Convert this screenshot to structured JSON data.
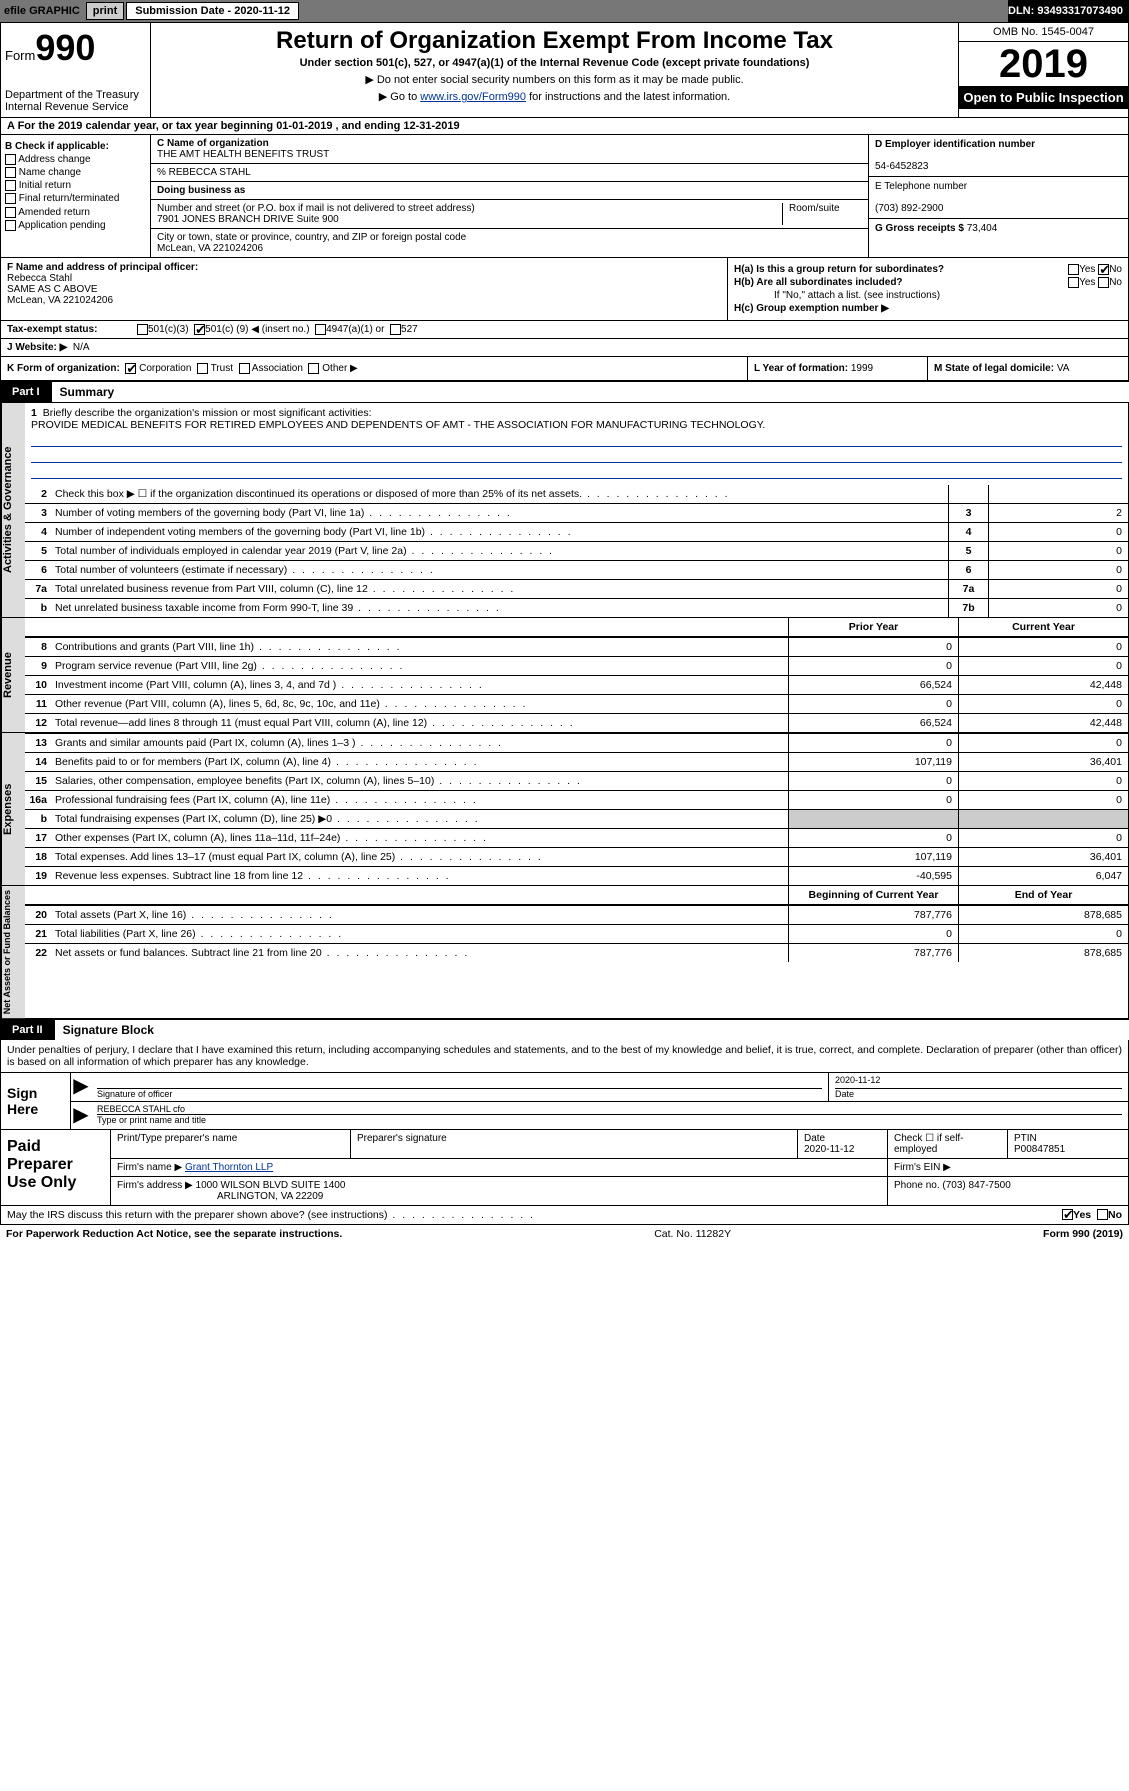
{
  "topbar": {
    "efile": "efile GRAPHIC",
    "print": "print",
    "sub_label": "Submission Date - ",
    "sub_date": "2020-11-12",
    "dln": "DLN: 93493317073490"
  },
  "header": {
    "form_label": "Form",
    "form_num": "990",
    "dept": "Department of the Treasury\nInternal Revenue Service",
    "title": "Return of Organization Exempt From Income Tax",
    "sub": "Under section 501(c), 527, or 4947(a)(1) of the Internal Revenue Code (except private foundations)",
    "arrow1": "▶ Do not enter social security numbers on this form as it may be made public.",
    "arrow2_pre": "▶ Go to ",
    "arrow2_link": "www.irs.gov/Form990",
    "arrow2_post": " for instructions and the latest information.",
    "omb": "OMB No. 1545-0047",
    "year": "2019",
    "open_pub": "Open to Public Inspection"
  },
  "lineA": "A For the 2019 calendar year, or tax year beginning 01-01-2019    , and ending 12-31-2019",
  "colB": {
    "header": "B Check if applicable:",
    "items": [
      "Address change",
      "Name change",
      "Initial return",
      "Final return/terminated",
      "Amended return",
      "Application pending"
    ]
  },
  "colC": {
    "name_lbl": "C Name of organization",
    "name": "THE AMT HEALTH BENEFITS TRUST",
    "care_of": "% REBECCA STAHL",
    "dba_lbl": "Doing business as",
    "addr_lbl": "Number and street (or P.O. box if mail is not delivered to street address)",
    "room_lbl": "Room/suite",
    "addr": "7901 JONES BRANCH DRIVE Suite 900",
    "city_lbl": "City or town, state or province, country, and ZIP or foreign postal code",
    "city": "McLean, VA  221024206"
  },
  "colD": {
    "ein_lbl": "D Employer identification number",
    "ein": "54-6452823",
    "phone_lbl": "E Telephone number",
    "phone": "(703) 892-2900",
    "gross_lbl": "G Gross receipts $",
    "gross": "73,404"
  },
  "rowF": {
    "lbl": "F Name and address of principal officer:",
    "name": "Rebecca Stahl",
    "line2": "SAME AS C ABOVE",
    "line3": "McLean, VA  221024206"
  },
  "rowH": {
    "a": "H(a)  Is this a group return for subordinates?",
    "a_yes": "Yes",
    "a_no": "No",
    "b": "H(b)  Are all subordinates included?",
    "b_yes": "Yes",
    "b_no": "No",
    "b_note": "If \"No,\" attach a list. (see instructions)",
    "c": "H(c)  Group exemption number ▶"
  },
  "rowI": {
    "lbl": "Tax-exempt status:",
    "o1": "501(c)(3)",
    "o2_pre": "501(c) (",
    "o2_val": "9",
    "o2_post": ") ◀ (insert no.)",
    "o3": "4947(a)(1) or",
    "o4": "527"
  },
  "rowJ": {
    "lbl": "J   Website: ▶",
    "val": "N/A"
  },
  "rowK": {
    "lbl": "K Form of organization:",
    "o1": "Corporation",
    "o2": "Trust",
    "o3": "Association",
    "o4": "Other ▶"
  },
  "rowL": {
    "lbl": "L Year of formation:",
    "val": "1999"
  },
  "rowM": {
    "lbl": "M State of legal domicile:",
    "val": "VA"
  },
  "part1": {
    "tag": "Part I",
    "title": "Summary"
  },
  "vtabs": {
    "gov": "Activities & Governance",
    "rev": "Revenue",
    "exp": "Expenses",
    "net": "Net Assets or Fund Balances"
  },
  "mission": {
    "ln": "1",
    "lbl": "Briefly describe the organization's mission or most significant activities:",
    "text": "PROVIDE MEDICAL BENEFITS FOR RETIRED EMPLOYEES AND DEPENDENTS OF AMT - THE ASSOCIATION FOR MANUFACTURING TECHNOLOGY."
  },
  "lines_gov": [
    {
      "n": "2",
      "d": "Check this box ▶ ☐  if the organization discontinued its operations or disposed of more than 25% of its net assets.",
      "box": "",
      "val": ""
    },
    {
      "n": "3",
      "d": "Number of voting members of the governing body (Part VI, line 1a)",
      "box": "3",
      "val": "2"
    },
    {
      "n": "4",
      "d": "Number of independent voting members of the governing body (Part VI, line 1b)",
      "box": "4",
      "val": "0"
    },
    {
      "n": "5",
      "d": "Total number of individuals employed in calendar year 2019 (Part V, line 2a)",
      "box": "5",
      "val": "0"
    },
    {
      "n": "6",
      "d": "Total number of volunteers (estimate if necessary)",
      "box": "6",
      "val": "0"
    },
    {
      "n": "7a",
      "d": "Total unrelated business revenue from Part VIII, column (C), line 12",
      "box": "7a",
      "val": "0"
    },
    {
      "n": "b",
      "d": "Net unrelated business taxable income from Form 990-T, line 39",
      "box": "7b",
      "val": "0"
    }
  ],
  "col_headers": {
    "prior": "Prior Year",
    "current": "Current Year",
    "beg": "Beginning of Current Year",
    "end": "End of Year"
  },
  "lines_rev": [
    {
      "n": "8",
      "d": "Contributions and grants (Part VIII, line 1h)",
      "p": "0",
      "c": "0"
    },
    {
      "n": "9",
      "d": "Program service revenue (Part VIII, line 2g)",
      "p": "0",
      "c": "0"
    },
    {
      "n": "10",
      "d": "Investment income (Part VIII, column (A), lines 3, 4, and 7d )",
      "p": "66,524",
      "c": "42,448"
    },
    {
      "n": "11",
      "d": "Other revenue (Part VIII, column (A), lines 5, 6d, 8c, 9c, 10c, and 11e)",
      "p": "0",
      "c": "0"
    },
    {
      "n": "12",
      "d": "Total revenue—add lines 8 through 11 (must equal Part VIII, column (A), line 12)",
      "p": "66,524",
      "c": "42,448"
    }
  ],
  "lines_exp": [
    {
      "n": "13",
      "d": "Grants and similar amounts paid (Part IX, column (A), lines 1–3 )",
      "p": "0",
      "c": "0"
    },
    {
      "n": "14",
      "d": "Benefits paid to or for members (Part IX, column (A), line 4)",
      "p": "107,119",
      "c": "36,401"
    },
    {
      "n": "15",
      "d": "Salaries, other compensation, employee benefits (Part IX, column (A), lines 5–10)",
      "p": "0",
      "c": "0"
    },
    {
      "n": "16a",
      "d": "Professional fundraising fees (Part IX, column (A), line 11e)",
      "p": "0",
      "c": "0"
    },
    {
      "n": "b",
      "d": "Total fundraising expenses (Part IX, column (D), line 25) ▶0",
      "p": "",
      "c": "",
      "shaded": true
    },
    {
      "n": "17",
      "d": "Other expenses (Part IX, column (A), lines 11a–11d, 11f–24e)",
      "p": "0",
      "c": "0"
    },
    {
      "n": "18",
      "d": "Total expenses. Add lines 13–17 (must equal Part IX, column (A), line 25)",
      "p": "107,119",
      "c": "36,401"
    },
    {
      "n": "19",
      "d": "Revenue less expenses. Subtract line 18 from line 12",
      "p": "-40,595",
      "c": "6,047"
    }
  ],
  "lines_net": [
    {
      "n": "20",
      "d": "Total assets (Part X, line 16)",
      "p": "787,776",
      "c": "878,685"
    },
    {
      "n": "21",
      "d": "Total liabilities (Part X, line 26)",
      "p": "0",
      "c": "0"
    },
    {
      "n": "22",
      "d": "Net assets or fund balances. Subtract line 21 from line 20",
      "p": "787,776",
      "c": "878,685"
    }
  ],
  "part2": {
    "tag": "Part II",
    "title": "Signature Block"
  },
  "declaration": "Under penalties of perjury, I declare that I have examined this return, including accompanying schedules and statements, and to the best of my knowledge and belief, it is true, correct, and complete. Declaration of preparer (other than officer) is based on all information of which preparer has any knowledge.",
  "sign": {
    "lbl": "Sign Here",
    "sig_lbl": "Signature of officer",
    "date_lbl": "Date",
    "date": "2020-11-12",
    "name": "REBECCA STAHL cfo",
    "name_lbl": "Type or print name and title"
  },
  "paid": {
    "lbl": "Paid Preparer Use Only",
    "h1": "Print/Type preparer's name",
    "h2": "Preparer's signature",
    "h3": "Date",
    "h4": "Check ☐ if self-employed",
    "h5": "PTIN",
    "date": "2020-11-12",
    "ptin": "P00847851",
    "firm_name_lbl": "Firm's name    ▶",
    "firm_name": "Grant Thornton LLP",
    "firm_ein_lbl": "Firm's EIN ▶",
    "firm_addr_lbl": "Firm's address ▶",
    "firm_addr": "1000 WILSON BLVD SUITE 1400",
    "firm_city": "ARLINGTON, VA  22209",
    "phone_lbl": "Phone no.",
    "phone": "(703) 847-7500"
  },
  "footer": {
    "discuss": "May the IRS discuss this return with the preparer shown above? (see instructions)",
    "yes": "Yes",
    "no": "No",
    "paperwork": "For Paperwork Reduction Act Notice, see the separate instructions.",
    "cat": "Cat. No. 11282Y",
    "form": "Form 990 (2019)"
  }
}
